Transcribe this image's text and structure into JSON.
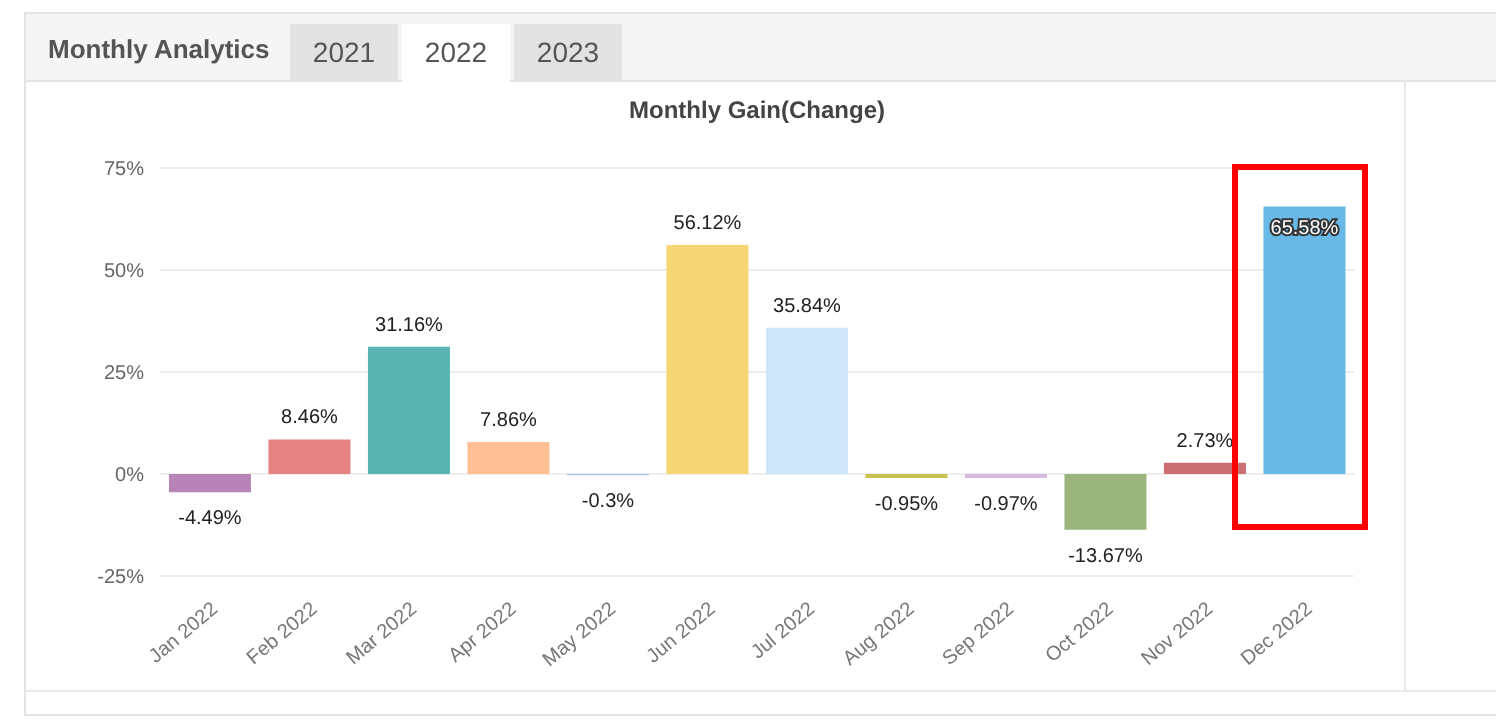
{
  "chart_data": {
    "type": "bar",
    "title": "Monthly Gain(Change)",
    "annotations": [
      "Monthly Analytics",
      "2021",
      "2022",
      "2023"
    ],
    "categories": [
      "Jan 2022",
      "Feb 2022",
      "Mar 2022",
      "Apr 2022",
      "May 2022",
      "Jun 2022",
      "Jul 2022",
      "Aug 2022",
      "Sep 2022",
      "Oct 2022",
      "Nov 2022",
      "Dec 2022"
    ],
    "values": [
      -4.49,
      8.46,
      31.16,
      7.86,
      -0.3,
      56.12,
      35.84,
      -0.95,
      -0.97,
      -13.67,
      2.73,
      65.58
    ],
    "value_labels": [
      "-4.49%",
      "8.46%",
      "31.16%",
      "7.86%",
      "-0.3%",
      "56.12%",
      "35.84%",
      "-0.95%",
      "-0.97%",
      "-13.67%",
      "2.73%",
      "65.58%"
    ],
    "colors": [
      "#b784b7",
      "#e48381",
      "#5ab4b1",
      "#ffbe93",
      "#a9c6e6",
      "#f6d574",
      "#cfe5f8",
      "#c8c04f",
      "#d5b9de",
      "#9bb57e",
      "#cc6f72",
      "#68b9e5"
    ],
    "ylim": [
      -25,
      75
    ],
    "yticks": [
      {
        "value": -25,
        "label": "-25%"
      },
      {
        "value": 0,
        "label": "0%"
      },
      {
        "value": 25,
        "label": "25%"
      },
      {
        "value": 50,
        "label": "50%"
      },
      {
        "value": 75,
        "label": "75%"
      }
    ],
    "grid": "y"
  }
}
